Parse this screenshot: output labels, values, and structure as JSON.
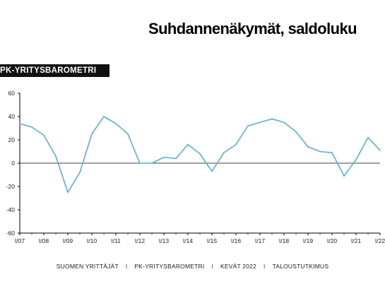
{
  "header": {
    "title": "Suhdannenäkymät, saldoluku",
    "badge": "PK-YRITYSBAROMETRI"
  },
  "footer": {
    "items": [
      "SUOMEN YRITTÄJÄT",
      "PK-YRITYSBAROMETRI",
      "KEVÄT 2022",
      "TALOUSTUTKIMUS"
    ],
    "separator": "I"
  },
  "colors": {
    "line": "#5aaee0",
    "axis": "#000000",
    "badge_bg": "#111111"
  },
  "chart_data": {
    "type": "line",
    "title": "Suhdannenäkymät, saldoluku",
    "xlabel": "",
    "ylabel": "",
    "ylim": [
      -60,
      60
    ],
    "yticks": [
      60,
      40,
      20,
      0,
      -20,
      -40,
      -60
    ],
    "grid": false,
    "legend": "none",
    "xtick_labels": [
      "I/07",
      "I/08",
      "I/09",
      "I/10",
      "I/11",
      "I/12",
      "I/13",
      "I/14",
      "I/15",
      "I/16",
      "I/17",
      "I/18",
      "I/19",
      "I/20",
      "I/21",
      "I/22"
    ],
    "series": [
      {
        "values": [
          34,
          31,
          24,
          6,
          -25,
          -8,
          25,
          40,
          34,
          25,
          0,
          0,
          5,
          4,
          16,
          8,
          -7,
          9,
          16,
          32,
          35,
          38,
          35,
          27,
          14,
          10,
          9,
          -11,
          3,
          22,
          11
        ]
      }
    ]
  }
}
